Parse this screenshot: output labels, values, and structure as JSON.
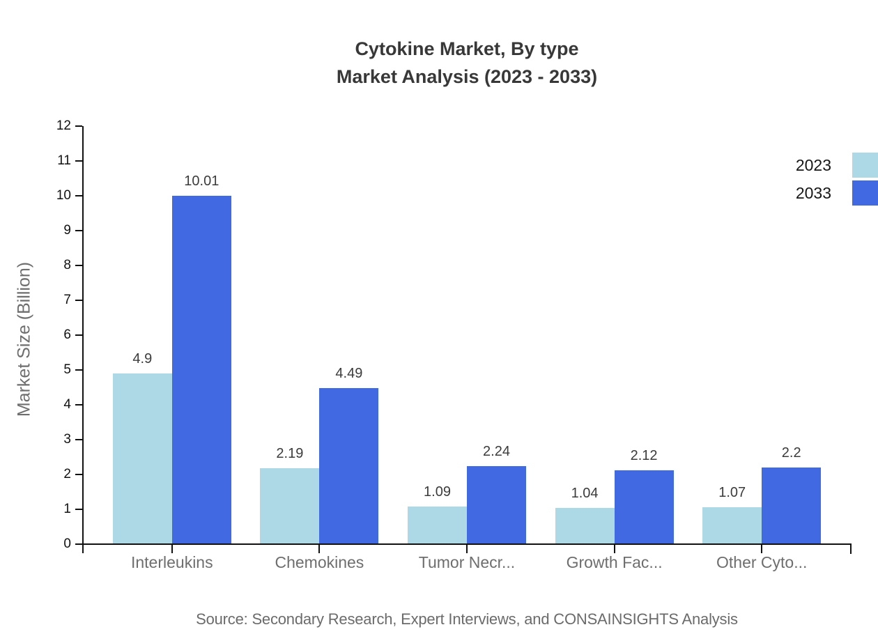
{
  "title": {
    "line1": "Cytokine Market, By type",
    "line2": "Market Analysis (2023 - 2033)"
  },
  "legend": {
    "items": [
      {
        "label": "2023",
        "color": "#ADD8E6"
      },
      {
        "label": "2033",
        "color": "#4169E1"
      }
    ]
  },
  "chart_data": {
    "type": "bar",
    "title": "Cytokine Market, By type Market Analysis (2023 - 2033)",
    "categories": [
      "Interleukins",
      "Chemokines",
      "Tumor Necr...",
      "Growth Fac...",
      "Other Cyto..."
    ],
    "series": [
      {
        "name": "2023",
        "color": "#ADD8E6",
        "values": [
          4.9,
          2.19,
          1.09,
          1.04,
          1.07
        ]
      },
      {
        "name": "2033",
        "color": "#4169E1",
        "values": [
          10.01,
          4.49,
          2.24,
          2.12,
          2.2
        ]
      }
    ],
    "xlabel": "",
    "ylabel": "Market Size (Billion)",
    "ylim": [
      0,
      12
    ],
    "ytick_step": 1,
    "grid": false,
    "legend_position": "top-right"
  },
  "source": "Source: Secondary Research, Expert Interviews, and CONSAINSIGHTS Analysis"
}
